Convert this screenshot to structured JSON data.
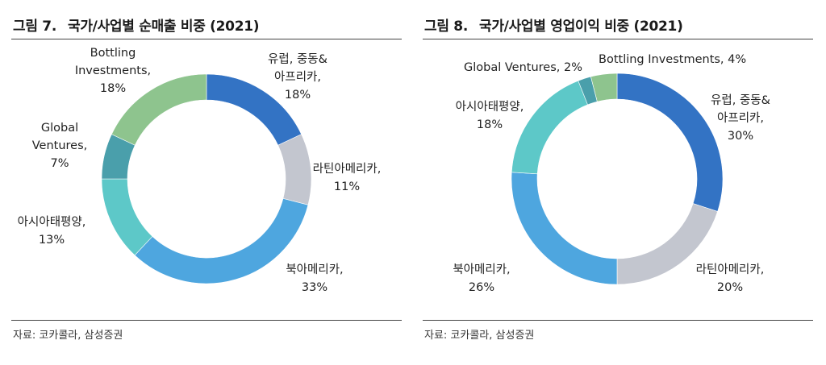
{
  "chart_data": [
    {
      "type": "pie",
      "title_prefix": "그림 7.",
      "title": "국가/사업별 순매출 비중 (2021)",
      "source": "자료: 코카콜라, 삼성증권",
      "slices": [
        {
          "label": "유럽, 중동& 아프리카",
          "value": 18,
          "value_label": "18%",
          "color": "#3373C4",
          "lines": [
            "유럽, 중동&",
            "아프리카,",
            "18%"
          ]
        },
        {
          "label": "라틴아메리카",
          "value": 11,
          "value_label": "11%",
          "color": "#C3C6CF",
          "lines": [
            "라틴아메리카,",
            "11%"
          ]
        },
        {
          "label": "북아메리카",
          "value": 33,
          "value_label": "33%",
          "color": "#4EA6DF",
          "lines": [
            "북아메리카,",
            "33%"
          ]
        },
        {
          "label": "아시아태평양",
          "value": 13,
          "value_label": "13%",
          "color": "#5DC8C8",
          "lines": [
            "아시아태평양,",
            "13%"
          ]
        },
        {
          "label": "Global Ventures",
          "value": 7,
          "value_label": "7%",
          "color": "#4A9FAB",
          "lines": [
            "Global",
            "Ventures,",
            "7%"
          ]
        },
        {
          "label": "Bottling Investments",
          "value": 18,
          "value_label": "18%",
          "color": "#8EC48E",
          "lines": [
            "Bottling",
            "Investments,",
            "18%"
          ]
        }
      ]
    },
    {
      "type": "pie",
      "title_prefix": "그림 8.",
      "title": "국가/사업별 영업이익 비중 (2021)",
      "source": "자료: 코카콜라, 삼성증권",
      "slices": [
        {
          "label": "유럽, 중동& 아프리카",
          "value": 30,
          "value_label": "30%",
          "color": "#3373C4",
          "lines": [
            "유럽, 중동&",
            "아프리카,",
            "30%"
          ]
        },
        {
          "label": "라틴아메리카",
          "value": 20,
          "value_label": "20%",
          "color": "#C3C6CF",
          "lines": [
            "라틴아메리카,",
            "20%"
          ]
        },
        {
          "label": "북아메리카",
          "value": 26,
          "value_label": "26%",
          "color": "#4EA6DF",
          "lines": [
            "북아메리카,",
            "26%"
          ]
        },
        {
          "label": "아시아태평양",
          "value": 18,
          "value_label": "18%",
          "color": "#5DC8C8",
          "lines": [
            "아시아태평양,",
            "18%"
          ]
        },
        {
          "label": "Global Ventures",
          "value": 2,
          "value_label": "2%",
          "color": "#4A9FAB",
          "lines": [
            "Global Ventures, 2%"
          ]
        },
        {
          "label": "Bottling Investments",
          "value": 4,
          "value_label": "4%",
          "color": "#8EC48E",
          "lines": [
            "Bottling Investments, 4%"
          ]
        }
      ]
    }
  ]
}
